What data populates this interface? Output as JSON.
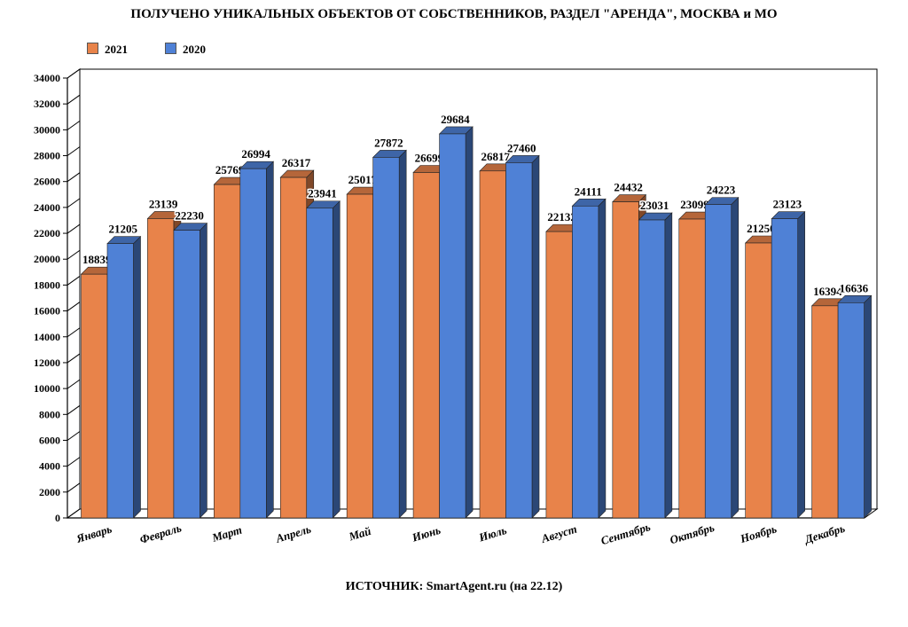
{
  "chart_data": {
    "type": "bar",
    "title": "ПОЛУЧЕНО УНИКАЛЬНЫХ ОБЪЕКТОВ ОТ СОБСТВЕННИКОВ, РАЗДЕЛ \"АРЕНДА\", МОСКВА и МО",
    "categories": [
      "Январь",
      "Февраль",
      "Март",
      "Апрель",
      "Май",
      "Июнь",
      "Июль",
      "Август",
      "Сентябрь",
      "Октябрь",
      "Ноябрь",
      "Декабрь"
    ],
    "series": [
      {
        "name": "2021",
        "color": "#E8834A",
        "values": [
          18839,
          23139,
          25769,
          26317,
          25017,
          26699,
          26817,
          22132,
          24432,
          23099,
          21250,
          16394
        ]
      },
      {
        "name": "2020",
        "color": "#4F81D6",
        "values": [
          21205,
          22230,
          26994,
          23941,
          27872,
          29684,
          27460,
          24111,
          23031,
          24223,
          23123,
          16636
        ]
      }
    ],
    "ylim": [
      0,
      34000
    ],
    "yticks": [
      "0",
      "2000",
      "4000",
      "6000",
      "8000",
      "10000",
      "12000",
      "14000",
      "16000",
      "18000",
      "20000",
      "22000",
      "24000",
      "26000",
      "28000",
      "30000",
      "32000",
      "34000"
    ],
    "legend_position": "top-left",
    "grid": false,
    "source": "ИСТОЧНИК: SmartAgent.ru (на 22.12)"
  }
}
